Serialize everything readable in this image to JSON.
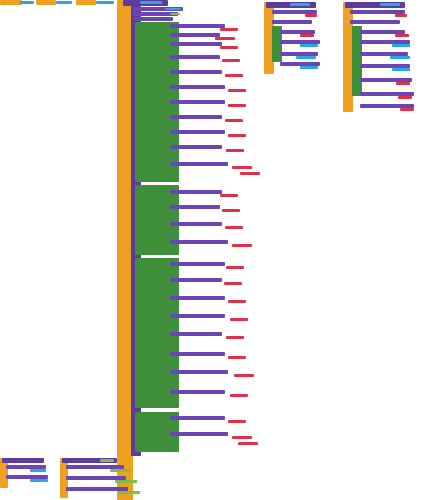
{
  "workspace": {
    "background": "#ffffff",
    "colors": {
      "event": "#f0a020",
      "procedure": "#5c3a9e",
      "control": "#3f8f3a",
      "text": "#2aa6e0",
      "math": "#e0304a",
      "list": "#7bc043"
    }
  }
}
